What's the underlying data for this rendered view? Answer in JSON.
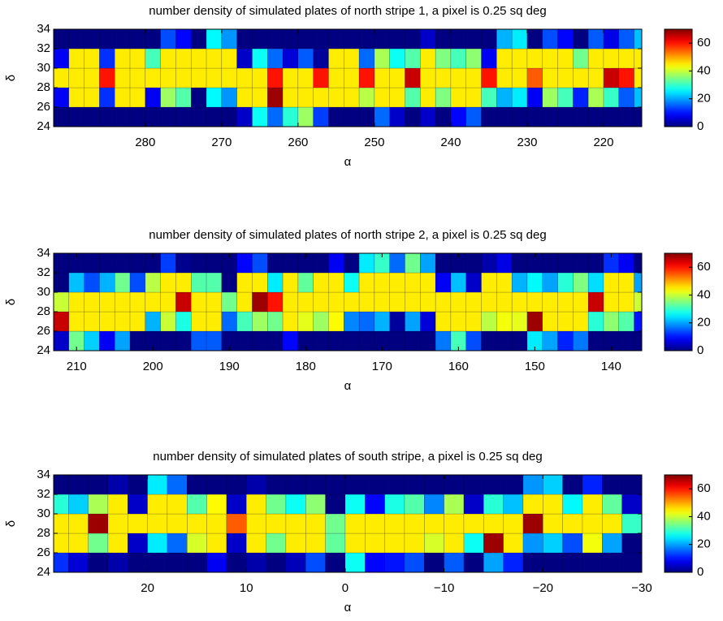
{
  "chart_data": [
    {
      "type": "heatmap",
      "title": "number density of simulated plates of north stripe 1, a pixel is 0.25 sq deg",
      "xlabel": "α",
      "ylabel": "δ",
      "colormap": "jet",
      "xlim": [
        292,
        215
      ],
      "ylim": [
        24,
        34
      ],
      "clim": [
        0,
        70
      ],
      "xticks": [
        280,
        270,
        260,
        250,
        240,
        230,
        220
      ],
      "yticks": [
        24,
        26,
        28,
        30,
        32,
        34
      ],
      "cticks": [
        0,
        20,
        40,
        60
      ],
      "xbins": [
        292,
        290,
        288,
        286,
        284,
        282,
        280,
        278,
        276,
        274,
        272,
        270,
        268,
        266,
        264,
        262,
        260,
        258,
        256,
        254,
        252,
        250,
        248,
        246,
        244,
        242,
        240,
        238,
        236,
        234,
        232,
        230,
        228,
        226,
        224,
        222,
        220,
        218,
        216,
        214
      ],
      "ybins": [
        24,
        26,
        28,
        30,
        32,
        34
      ],
      "z": [
        [
          0,
          0,
          0,
          0,
          0,
          0,
          0,
          0,
          0,
          0,
          0,
          0,
          5,
          27,
          16,
          29,
          37,
          13,
          0,
          0,
          0,
          16,
          5,
          0,
          5,
          0,
          9,
          15,
          0,
          0,
          0,
          0,
          0,
          0,
          0,
          0,
          0,
          0,
          0
        ],
        [
          8,
          45,
          45,
          12,
          45,
          45,
          8,
          37,
          32,
          0,
          26,
          19,
          45,
          45,
          68,
          45,
          45,
          45,
          45,
          45,
          39,
          45,
          45,
          32,
          45,
          35,
          45,
          45,
          31,
          21,
          25,
          8,
          37,
          31,
          11,
          38,
          30,
          15,
          22
        ],
        [
          45,
          45,
          45,
          60,
          45,
          45,
          45,
          45,
          45,
          45,
          45,
          45,
          45,
          45,
          60,
          45,
          45,
          60,
          45,
          45,
          60,
          45,
          45,
          65,
          45,
          45,
          45,
          45,
          60,
          45,
          45,
          55,
          45,
          45,
          45,
          45,
          65,
          60,
          45
        ],
        [
          8,
          45,
          45,
          12,
          45,
          45,
          31,
          45,
          45,
          45,
          45,
          45,
          5,
          27,
          16,
          6,
          15,
          2,
          45,
          45,
          16,
          38,
          27,
          32,
          45,
          35,
          31,
          36,
          8,
          45,
          45,
          45,
          45,
          45,
          34,
          45,
          45,
          45,
          45
        ],
        [
          0,
          0,
          0,
          0,
          0,
          0,
          0,
          14,
          9,
          0,
          26,
          19,
          0,
          0,
          0,
          0,
          0,
          0,
          0,
          0,
          0,
          0,
          0,
          0,
          5,
          0,
          0,
          0,
          0,
          21,
          25,
          0,
          14,
          9,
          0,
          15,
          7,
          15,
          22
        ]
      ]
    },
    {
      "type": "heatmap",
      "title": "number density of simulated plates of north stripe 2, a pixel is 0.25 sq deg",
      "xlabel": "α",
      "ylabel": "δ",
      "colormap": "jet",
      "xlim": [
        213,
        136
      ],
      "ylim": [
        24,
        34
      ],
      "clim": [
        0,
        70
      ],
      "xticks": [
        210,
        200,
        190,
        180,
        170,
        160,
        150,
        140
      ],
      "yticks": [
        24,
        26,
        28,
        30,
        32,
        34
      ],
      "cticks": [
        0,
        20,
        40,
        60
      ],
      "xbins": [
        213,
        211,
        209,
        207,
        205,
        203,
        201,
        199,
        197,
        195,
        193,
        191,
        189,
        187,
        185,
        183,
        181,
        179,
        177,
        175,
        173,
        171,
        169,
        167,
        165,
        163,
        161,
        159,
        157,
        155,
        153,
        151,
        149,
        147,
        145,
        143,
        141,
        139,
        137,
        135
      ],
      "ybins": [
        24,
        26,
        28,
        30,
        32,
        34
      ],
      "z": [
        [
          5,
          34,
          23,
          8,
          20,
          0,
          0,
          0,
          0,
          15,
          15,
          0,
          0,
          0,
          0,
          9,
          0,
          0,
          0,
          0,
          0,
          0,
          0,
          0,
          0,
          17,
          31,
          14,
          0,
          0,
          0,
          25,
          20,
          11,
          17,
          0,
          0,
          0,
          0
        ],
        [
          65,
          45,
          45,
          45,
          45,
          45,
          21,
          40,
          28,
          45,
          45,
          16,
          31,
          37,
          34,
          45,
          42,
          37,
          44,
          18,
          16,
          21,
          2,
          20,
          6,
          45,
          45,
          45,
          39,
          43,
          42,
          68,
          45,
          45,
          45,
          29,
          36,
          32,
          10
        ],
        [
          40,
          45,
          45,
          45,
          45,
          45,
          45,
          45,
          65,
          45,
          45,
          34,
          45,
          68,
          60,
          45,
          45,
          45,
          45,
          45,
          45,
          45,
          45,
          45,
          45,
          45,
          45,
          45,
          45,
          45,
          45,
          45,
          45,
          45,
          45,
          65,
          45,
          45,
          40
        ],
        [
          0,
          22,
          14,
          21,
          34,
          14,
          39,
          45,
          45,
          32,
          32,
          0,
          45,
          45,
          25,
          45,
          33,
          45,
          45,
          27,
          45,
          45,
          45,
          45,
          45,
          8,
          22,
          5,
          45,
          45,
          21,
          26,
          20,
          29,
          35,
          24,
          45,
          45,
          20
        ],
        [
          0,
          0,
          0,
          0,
          0,
          0,
          0,
          13,
          1,
          0,
          0,
          0,
          9,
          14,
          0,
          0,
          0,
          0,
          8,
          0,
          25,
          30,
          16,
          34,
          20,
          0,
          0,
          0,
          3,
          7,
          0,
          0,
          0,
          0,
          0,
          0,
          12,
          8,
          0
        ]
      ]
    },
    {
      "type": "heatmap",
      "title": "number density of simulated plates of south stripe, a pixel is 0.25 sq deg",
      "xlabel": "α",
      "ylabel": "δ",
      "colormap": "jet",
      "xlim": [
        29.5,
        -30
      ],
      "ylim": [
        24,
        34
      ],
      "clim": [
        0,
        70
      ],
      "xticks": [
        20,
        10,
        0,
        {
          "value": -10,
          "label": "−10"
        },
        {
          "value": -20,
          "label": "−20"
        },
        {
          "value": -30,
          "label": "−30"
        }
      ],
      "yticks": [
        24,
        26,
        28,
        30,
        32,
        34
      ],
      "cticks": [
        0,
        20,
        40,
        60
      ],
      "xbins": [
        30,
        28,
        26,
        24,
        22,
        20,
        18,
        16,
        14,
        12,
        10,
        8,
        6,
        4,
        2,
        0,
        -2,
        -4,
        -6,
        -8,
        -10,
        -12,
        -14,
        -16,
        -18,
        -20,
        -22,
        -24,
        -26,
        -28,
        -30
      ],
      "ybins": [
        24,
        26,
        28,
        30,
        32,
        34
      ],
      "z": [
        [
          12,
          6,
          0,
          3,
          0,
          0,
          0,
          0,
          8,
          0,
          3,
          0,
          4,
          14,
          0,
          27,
          9,
          10,
          14,
          0,
          15,
          0,
          20,
          11,
          0,
          0,
          0,
          0,
          0,
          0
        ],
        [
          45,
          45,
          34,
          45,
          5,
          25,
          16,
          41,
          45,
          5,
          45,
          34,
          45,
          45,
          33,
          45,
          45,
          45,
          45,
          41,
          45,
          27,
          68,
          45,
          19,
          23,
          14,
          43,
          20,
          0
        ],
        [
          45,
          45,
          68,
          45,
          45,
          45,
          45,
          45,
          45,
          55,
          45,
          45,
          45,
          45,
          34,
          45,
          45,
          45,
          45,
          45,
          45,
          45,
          45,
          45,
          68,
          45,
          45,
          45,
          45,
          30
        ],
        [
          29,
          23,
          38,
          45,
          5,
          45,
          45,
          32,
          44,
          5,
          45,
          34,
          27,
          36,
          0,
          27,
          9,
          28,
          32,
          18,
          38,
          5,
          29,
          22,
          45,
          45,
          26,
          45,
          33,
          5
        ],
        [
          0,
          0,
          0,
          3,
          0,
          25,
          16,
          0,
          0,
          0,
          3,
          0,
          0,
          0,
          0,
          0,
          0,
          0,
          0,
          0,
          0,
          0,
          0,
          0,
          19,
          23,
          0,
          11,
          0,
          0
        ]
      ]
    }
  ]
}
